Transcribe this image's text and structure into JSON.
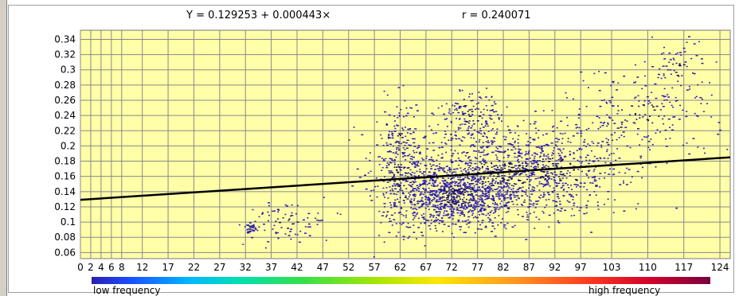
{
  "chart_data": {
    "type": "scatter",
    "equation_label": "Y = 0.129253 + 0.000443×",
    "r_label": "r = 0.240071",
    "regression": {
      "intercept": 0.129253,
      "slope": 0.000443
    },
    "xlim": [
      0,
      126
    ],
    "ylim": [
      0.052,
      0.352
    ],
    "x_ticks": [
      "0",
      "2",
      "4",
      "6",
      "8",
      "12",
      "17",
      "22",
      "27",
      "32",
      "37",
      "42",
      "47",
      "52",
      "57",
      "62",
      "67",
      "72",
      "77",
      "82",
      "87",
      "92",
      "97",
      "103",
      "110",
      "117",
      "124"
    ],
    "x_tick_values": [
      0,
      2,
      4,
      6,
      8,
      12,
      17,
      22,
      27,
      32,
      37,
      42,
      47,
      52,
      57,
      62,
      67,
      72,
      77,
      82,
      87,
      92,
      97,
      103,
      110,
      117,
      124
    ],
    "y_ticks": [
      "0.34",
      "0.32",
      "0.3",
      "0.28",
      "0.26",
      "0.24",
      "0.22",
      "0.2",
      "0.18",
      "0.16",
      "0.14",
      "0.12",
      "0.1",
      "0.08",
      "0.06"
    ],
    "y_tick_values": [
      0.34,
      0.32,
      0.3,
      0.28,
      0.26,
      0.24,
      0.22,
      0.2,
      0.18,
      0.16,
      0.14,
      0.12,
      0.1,
      0.08,
      0.06
    ],
    "clusters": [
      {
        "x": 73,
        "y": 0.135,
        "sx": 6,
        "sy": 0.022,
        "n": 900
      },
      {
        "x": 82,
        "y": 0.165,
        "sx": 9,
        "sy": 0.028,
        "n": 700
      },
      {
        "x": 92,
        "y": 0.17,
        "sx": 8,
        "sy": 0.03,
        "n": 360
      },
      {
        "x": 62,
        "y": 0.16,
        "sx": 3.5,
        "sy": 0.04,
        "n": 260
      },
      {
        "x": 76,
        "y": 0.24,
        "sx": 3,
        "sy": 0.018,
        "n": 160
      },
      {
        "x": 108,
        "y": 0.24,
        "sx": 8,
        "sy": 0.03,
        "n": 220
      },
      {
        "x": 116,
        "y": 0.3,
        "sx": 2.5,
        "sy": 0.02,
        "n": 60
      },
      {
        "x": 40,
        "y": 0.1,
        "sx": 5,
        "sy": 0.015,
        "n": 80
      },
      {
        "x": 33,
        "y": 0.093,
        "sx": 0.6,
        "sy": 0.003,
        "n": 30
      },
      {
        "x": 62,
        "y": 0.21,
        "sx": 1.2,
        "sy": 0.04,
        "n": 60
      }
    ],
    "colors": {
      "plot_bg": "#ffffa8",
      "grid": "#888888",
      "points": "#2d1bb0",
      "dense_points": "#1a0d6e",
      "line": "#000000"
    },
    "grid": true
  },
  "legend": {
    "low_label": "low frequency",
    "high_label": "high frequency"
  }
}
